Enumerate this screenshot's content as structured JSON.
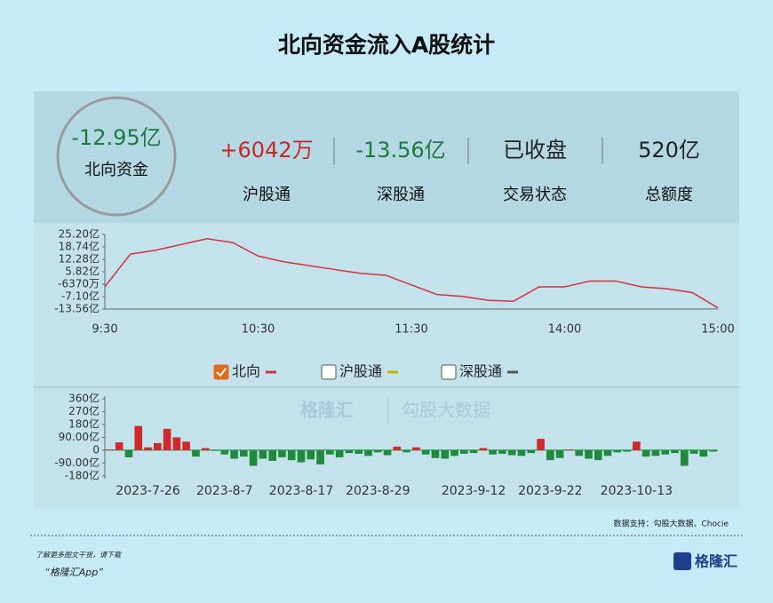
{
  "header": {
    "title": "北向资金流入A股统计"
  },
  "summary": {
    "main": {
      "value": "-12.95亿",
      "label": "北向资金"
    },
    "items": [
      {
        "value": "+6042万",
        "label": "沪股通",
        "color": "#c62828"
      },
      {
        "value": "-13.56亿",
        "label": "深股通",
        "color": "#1b7a3a"
      },
      {
        "value": "已收盘",
        "label": "交易状态",
        "color": "#222222"
      },
      {
        "value": "520亿",
        "label": "总额度",
        "color": "#222222"
      }
    ]
  },
  "chart_data": [
    {
      "type": "line",
      "x": [
        "9:30",
        "9:40",
        "9:50",
        "10:00",
        "10:10",
        "10:20",
        "10:30",
        "10:40",
        "10:50",
        "11:00",
        "11:10",
        "11:20",
        "11:30",
        "13:10",
        "13:20",
        "13:30",
        "13:40",
        "13:50",
        "14:00",
        "14:10",
        "14:20",
        "14:30",
        "14:40",
        "14:50",
        "15:00"
      ],
      "xticks": [
        "9:30",
        "10:30",
        "11:30",
        "14:00",
        "15:00"
      ],
      "series": [
        {
          "name": "北向",
          "color": "#d0343c",
          "values": [
            -2,
            15,
            17,
            20,
            23,
            21,
            14,
            11,
            9,
            7,
            5,
            4,
            -1,
            -6,
            -7,
            -9,
            -9.5,
            -2,
            -2,
            1,
            1,
            -2,
            -3,
            -5,
            -12.95
          ],
          "checked": true
        }
      ],
      "hidden_series": [
        {
          "name": "沪股通",
          "color": "#c8b400"
        },
        {
          "name": "深股通",
          "color": "#555555"
        }
      ],
      "ylim": [
        -13.56,
        25.2
      ],
      "yticks": [
        {
          "value": 25.2,
          "label": "25.20亿"
        },
        {
          "value": 18.74,
          "label": "18.74亿"
        },
        {
          "value": 12.28,
          "label": "12.28亿"
        },
        {
          "value": 5.82,
          "label": "5.82亿"
        },
        {
          "value": -0.637,
          "label": "-6370万"
        },
        {
          "value": -7.1,
          "label": "-7.10亿"
        },
        {
          "value": -13.56,
          "label": "-13.56亿"
        }
      ]
    },
    {
      "type": "bar",
      "categories": [
        null,
        null,
        null,
        null,
        "2023-7-26",
        null,
        null,
        null,
        null,
        null,
        null,
        null,
        "2023-8-7",
        null,
        null,
        null,
        null,
        null,
        null,
        null,
        "2023-8-17",
        null,
        null,
        null,
        null,
        null,
        null,
        null,
        "2023-8-29",
        null,
        null,
        null,
        null,
        null,
        null,
        null,
        null,
        null,
        "2023-9-12",
        null,
        null,
        null,
        null,
        null,
        null,
        null,
        "2023-9-22",
        null,
        null,
        null,
        null,
        null,
        null,
        null,
        null,
        "2023-10-13",
        null,
        null,
        null,
        null,
        null,
        null,
        null,
        null
      ],
      "values": [
        5,
        55,
        -50,
        170,
        20,
        50,
        150,
        90,
        60,
        -45,
        15,
        -5,
        -30,
        -60,
        -45,
        -110,
        -60,
        -75,
        -50,
        -70,
        -85,
        -65,
        -100,
        -30,
        -50,
        -20,
        -25,
        -40,
        -15,
        -35,
        25,
        -15,
        20,
        -30,
        -55,
        -60,
        -40,
        -25,
        -20,
        15,
        -30,
        -25,
        -35,
        -40,
        -20,
        80,
        -70,
        -55,
        5,
        -40,
        -60,
        -70,
        -40,
        -15,
        -10,
        60,
        -45,
        -40,
        -30,
        -20,
        -110,
        -25,
        -45,
        -10
      ],
      "up_color": "#d0282e",
      "down_color": "#1f8a3c",
      "ylim": [
        -200,
        380
      ],
      "yticks": [
        {
          "value": 360,
          "label": "360亿"
        },
        {
          "value": 270,
          "label": "270亿"
        },
        {
          "value": 180,
          "label": "180亿"
        },
        {
          "value": 90,
          "label": "90.00亿"
        },
        0,
        {
          "value": -90,
          "label": "-90.00亿"
        },
        {
          "value": -180,
          "label": "-180亿"
        }
      ]
    }
  ],
  "watermark": {
    "brand": "格隆汇",
    "partner": "勾股大数据"
  },
  "footer": {
    "source": "数据支持：勾股大数据、Chocie",
    "promo": "了解更多图文干货，请下载",
    "app": "“格隆汇App”",
    "logo": "格隆汇"
  }
}
